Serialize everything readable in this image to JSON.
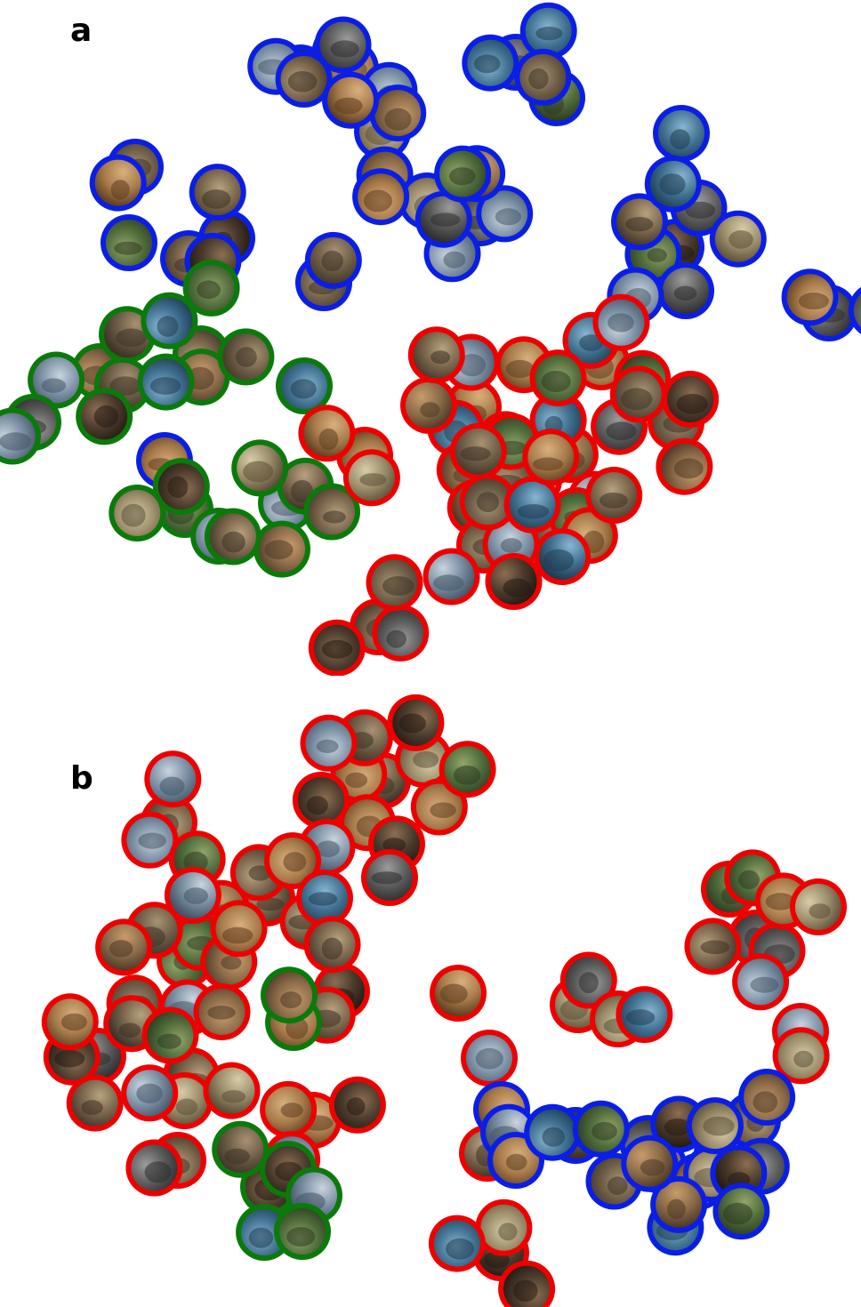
{
  "panels": [
    {
      "id": "a",
      "label": "a",
      "clusters": [
        {
          "color": "blue",
          "count": 2
        },
        {
          "color": "blue",
          "count": 3
        },
        {
          "color": "blue",
          "count": 4
        },
        {
          "color": "blue",
          "count": 4
        },
        {
          "color": "blue",
          "count": 1
        },
        {
          "color": "blue",
          "count": 1
        },
        {
          "color": "blue",
          "count": 3
        },
        {
          "color": "blue",
          "count": 3
        },
        {
          "color": "blue",
          "count": 2
        },
        {
          "color": "blue",
          "count": 2
        },
        {
          "color": "blue",
          "count": 4
        },
        {
          "color": "blue",
          "count": 4
        },
        {
          "color": "blue",
          "count": 1
        },
        {
          "color": "blue",
          "count": 8
        },
        {
          "color": "blue",
          "count": 3
        },
        {
          "color": "blue",
          "count": 1
        },
        {
          "color": "blue",
          "count": 1
        },
        {
          "color": "green",
          "count": 5
        },
        {
          "color": "green",
          "count": 6
        },
        {
          "color": "green",
          "count": 2
        },
        {
          "color": "green",
          "count": 1
        },
        {
          "color": "green",
          "count": 4
        },
        {
          "color": "green",
          "count": 6
        },
        {
          "color": "red",
          "count": 4
        },
        {
          "color": "red",
          "count": 3
        },
        {
          "color": "red",
          "count": 8
        },
        {
          "color": "red",
          "count": 10
        },
        {
          "color": "red",
          "count": 6
        },
        {
          "color": "red",
          "count": 4
        },
        {
          "color": "red",
          "count": 5
        },
        {
          "color": "red",
          "count": 6
        }
      ]
    },
    {
      "id": "b",
      "label": "b",
      "clusters": [
        {
          "color": "red",
          "count": 4
        },
        {
          "color": "red",
          "count": 12
        },
        {
          "color": "red",
          "count": 5
        },
        {
          "color": "red",
          "count": 10
        },
        {
          "color": "red",
          "count": 1
        },
        {
          "color": "red",
          "count": 1
        },
        {
          "color": "red",
          "count": 3
        },
        {
          "color": "red",
          "count": 5
        },
        {
          "color": "red",
          "count": 1
        },
        {
          "color": "red",
          "count": 2
        },
        {
          "color": "red",
          "count": 2
        },
        {
          "color": "red",
          "count": 1
        },
        {
          "color": "red",
          "count": 5
        },
        {
          "color": "red",
          "count": 2
        },
        {
          "color": "red",
          "count": 1
        },
        {
          "color": "red",
          "count": 4
        },
        {
          "color": "red",
          "count": 2
        },
        {
          "color": "red",
          "count": 5
        },
        {
          "color": "red",
          "count": 2
        },
        {
          "color": "red",
          "count": 1
        },
        {
          "color": "red",
          "count": 4
        },
        {
          "color": "green",
          "count": 2
        },
        {
          "color": "green",
          "count": 5
        },
        {
          "color": "green",
          "count": 1
        },
        {
          "color": "blue",
          "count": 2
        },
        {
          "color": "blue",
          "count": 1
        },
        {
          "color": "blue",
          "count": 2
        },
        {
          "color": "blue",
          "count": 8
        },
        {
          "color": "blue",
          "count": 3
        },
        {
          "color": "blue",
          "count": 6
        }
      ]
    }
  ],
  "colors": {
    "red": "#ee0000",
    "green": "#0a7a0a",
    "blue": "#0a1ee6"
  }
}
